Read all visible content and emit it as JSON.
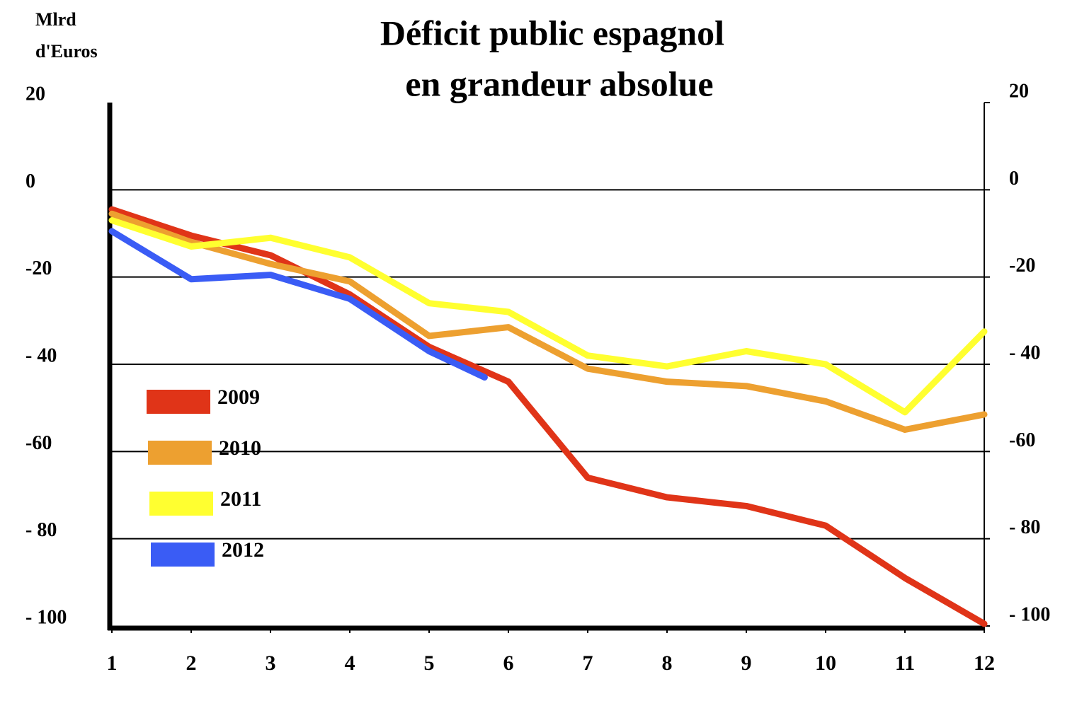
{
  "chart_data": {
    "type": "line",
    "title": [
      "Déficit public espagnol",
      "en grandeur absolue"
    ],
    "ylabel": [
      "Mlrd",
      "d'Euros"
    ],
    "x": [
      1,
      2,
      3,
      4,
      5,
      6,
      7,
      8,
      9,
      10,
      11,
      12
    ],
    "xlim": [
      1,
      12
    ],
    "xticks": [
      1,
      2,
      3,
      4,
      5,
      6,
      7,
      8,
      9,
      10,
      11,
      12
    ],
    "ylim": [
      -100,
      20
    ],
    "yticks": [
      20,
      0,
      -20,
      {
        "value": -40,
        "label": "- 40"
      },
      -60,
      {
        "value": -80,
        "label": "- 80"
      },
      {
        "value": -100,
        "label": "- 100"
      }
    ],
    "y2lim": [
      -100,
      20
    ],
    "y2ticks": [
      20,
      0,
      -20,
      {
        "value": -40,
        "label": "- 40"
      },
      -60,
      {
        "value": -80,
        "label": "- 80"
      },
      {
        "value": -100,
        "label": "- 100"
      }
    ],
    "grid": true,
    "legend": "lower left",
    "series": [
      {
        "name": "2009",
        "color": "#e03418",
        "values": [
          -4.5,
          -10.5,
          -15,
          -24,
          -36,
          -44,
          -66,
          -70.5,
          -72.5,
          -77,
          -89,
          -99.5
        ]
      },
      {
        "name": "2010",
        "color": "#eda030",
        "values": [
          -5.5,
          -12,
          -17,
          -21,
          -33.5,
          -31.5,
          -41,
          -44,
          -45,
          -48.5,
          -55,
          -51.5
        ]
      },
      {
        "name": "2011",
        "color": "#ffff30",
        "values": [
          -7,
          -13,
          -11,
          -15.5,
          -26,
          -28,
          -38,
          -40.5,
          -37,
          -40,
          -51,
          -32.5
        ]
      },
      {
        "name": "2012",
        "color": "#3a5cf5",
        "x": [
          1,
          2,
          3,
          4,
          5,
          5.7
        ],
        "values": [
          -9.5,
          -20.5,
          -19.5,
          -25,
          -37,
          -43
        ]
      }
    ]
  }
}
